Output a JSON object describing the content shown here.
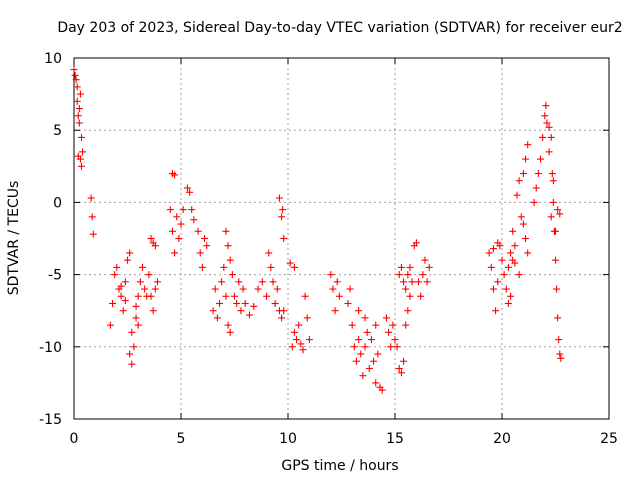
{
  "chart_data": {
    "type": "scatter",
    "title": "Day 203 of 2023, Sidereal Day-to-day VTEC variation (SDTVAR) for receiver eur2",
    "xlabel": "GPS time / hours",
    "ylabel": "SDTVAR / TECUs",
    "xlim": [
      0,
      25
    ],
    "ylim": [
      -15,
      10
    ],
    "xticks": [
      0,
      5,
      10,
      15,
      20,
      25
    ],
    "yticks": [
      -15,
      -10,
      -5,
      0,
      5,
      10
    ],
    "grid": true,
    "marker": "plus",
    "marker_color": "#ff0000",
    "series": [
      {
        "name": "eur2",
        "points": [
          [
            0.0,
            9.2
          ],
          [
            0.05,
            8.8
          ],
          [
            0.1,
            8.5
          ],
          [
            0.15,
            7.0
          ],
          [
            0.2,
            6.0
          ],
          [
            0.25,
            5.5
          ],
          [
            0.3,
            7.5
          ],
          [
            0.35,
            4.5
          ],
          [
            0.4,
            3.5
          ],
          [
            0.3,
            3.0
          ],
          [
            0.2,
            3.2
          ],
          [
            0.35,
            2.5
          ],
          [
            0.15,
            8.0
          ],
          [
            0.25,
            6.5
          ],
          [
            0.8,
            0.3
          ],
          [
            0.85,
            -1.0
          ],
          [
            0.9,
            -2.2
          ],
          [
            1.7,
            -8.5
          ],
          [
            1.8,
            -7.0
          ],
          [
            1.9,
            -5.0
          ],
          [
            2.0,
            -4.5
          ],
          [
            2.1,
            -6.0
          ],
          [
            2.2,
            -6.5
          ],
          [
            2.3,
            -7.5
          ],
          [
            2.4,
            -5.5
          ],
          [
            2.5,
            -4.0
          ],
          [
            2.6,
            -3.5
          ],
          [
            2.7,
            -9.0
          ],
          [
            2.6,
            -10.5
          ],
          [
            2.7,
            -11.2
          ],
          [
            2.8,
            -10.0
          ],
          [
            2.9,
            -8.0
          ],
          [
            3.0,
            -6.5
          ],
          [
            3.1,
            -5.5
          ],
          [
            3.2,
            -4.5
          ],
          [
            3.3,
            -6.0
          ],
          [
            3.4,
            -6.5
          ],
          [
            3.5,
            -5.0
          ],
          [
            3.6,
            -6.5
          ],
          [
            3.7,
            -7.5
          ],
          [
            3.8,
            -6.0
          ],
          [
            3.9,
            -5.5
          ],
          [
            2.2,
            -5.8
          ],
          [
            2.4,
            -6.8
          ],
          [
            2.9,
            -7.2
          ],
          [
            3.0,
            -8.5
          ],
          [
            3.6,
            -2.5
          ],
          [
            3.7,
            -2.8
          ],
          [
            3.8,
            -3.0
          ],
          [
            4.5,
            -0.5
          ],
          [
            4.6,
            -2.0
          ],
          [
            4.7,
            -3.5
          ],
          [
            4.8,
            -1.0
          ],
          [
            4.9,
            -2.5
          ],
          [
            5.0,
            -1.5
          ],
          [
            5.1,
            -0.5
          ],
          [
            4.6,
            2.0
          ],
          [
            4.7,
            1.9
          ],
          [
            5.3,
            1.0
          ],
          [
            5.4,
            0.7
          ],
          [
            5.5,
            -0.5
          ],
          [
            5.6,
            -1.2
          ],
          [
            5.8,
            -2.0
          ],
          [
            5.9,
            -3.5
          ],
          [
            6.0,
            -4.5
          ],
          [
            6.1,
            -2.5
          ],
          [
            6.2,
            -3.0
          ],
          [
            6.5,
            -7.5
          ],
          [
            6.6,
            -6.0
          ],
          [
            6.7,
            -8.0
          ],
          [
            6.8,
            -7.0
          ],
          [
            6.9,
            -5.5
          ],
          [
            7.0,
            -4.5
          ],
          [
            7.1,
            -6.5
          ],
          [
            7.2,
            -8.5
          ],
          [
            7.3,
            -9.0
          ],
          [
            7.1,
            -2.0
          ],
          [
            7.2,
            -3.0
          ],
          [
            7.3,
            -4.0
          ],
          [
            7.4,
            -5.0
          ],
          [
            7.5,
            -6.5
          ],
          [
            7.6,
            -7.0
          ],
          [
            7.7,
            -5.5
          ],
          [
            7.8,
            -7.5
          ],
          [
            7.9,
            -6.0
          ],
          [
            8.0,
            -7.0
          ],
          [
            8.2,
            -7.8
          ],
          [
            8.4,
            -7.2
          ],
          [
            8.6,
            -6.0
          ],
          [
            8.8,
            -5.5
          ],
          [
            9.0,
            -6.5
          ],
          [
            9.1,
            -3.5
          ],
          [
            9.2,
            -4.5
          ],
          [
            9.3,
            -5.5
          ],
          [
            9.4,
            -7.0
          ],
          [
            9.5,
            -6.0
          ],
          [
            9.6,
            -7.5
          ],
          [
            9.7,
            -8.0
          ],
          [
            9.8,
            -7.5
          ],
          [
            9.6,
            0.3
          ],
          [
            9.7,
            -1.0
          ],
          [
            9.8,
            -2.5
          ],
          [
            9.75,
            -0.5
          ],
          [
            10.2,
            -10.0
          ],
          [
            10.3,
            -9.0
          ],
          [
            10.4,
            -9.5
          ],
          [
            10.5,
            -8.5
          ],
          [
            10.6,
            -9.8
          ],
          [
            10.7,
            -10.2
          ],
          [
            10.8,
            -6.5
          ],
          [
            10.9,
            -8.0
          ],
          [
            11.0,
            -9.5
          ],
          [
            10.1,
            -4.2
          ],
          [
            10.3,
            -4.5
          ],
          [
            12.0,
            -5.0
          ],
          [
            12.1,
            -6.0
          ],
          [
            12.2,
            -7.5
          ],
          [
            12.3,
            -5.5
          ],
          [
            12.4,
            -6.5
          ],
          [
            12.8,
            -7.0
          ],
          [
            12.9,
            -6.0
          ],
          [
            13.0,
            -8.5
          ],
          [
            13.1,
            -10.0
          ],
          [
            13.2,
            -11.0
          ],
          [
            13.3,
            -9.5
          ],
          [
            13.4,
            -10.5
          ],
          [
            13.5,
            -12.0
          ],
          [
            13.6,
            -10.0
          ],
          [
            13.7,
            -9.0
          ],
          [
            13.8,
            -11.5
          ],
          [
            13.9,
            -9.5
          ],
          [
            14.0,
            -11.0
          ],
          [
            14.1,
            -8.5
          ],
          [
            14.2,
            -10.5
          ],
          [
            14.3,
            -12.8
          ],
          [
            14.4,
            -13.0
          ],
          [
            14.1,
            -12.5
          ],
          [
            13.3,
            -7.5
          ],
          [
            13.6,
            -8.0
          ],
          [
            14.6,
            -8.0
          ],
          [
            14.7,
            -9.0
          ],
          [
            14.8,
            -10.0
          ],
          [
            14.9,
            -8.5
          ],
          [
            15.0,
            -9.5
          ],
          [
            15.1,
            -10.0
          ],
          [
            15.2,
            -11.5
          ],
          [
            15.3,
            -11.8
          ],
          [
            15.4,
            -11.0
          ],
          [
            15.5,
            -8.5
          ],
          [
            15.6,
            -7.5
          ],
          [
            15.7,
            -6.5
          ],
          [
            15.2,
            -5.0
          ],
          [
            15.3,
            -4.5
          ],
          [
            15.4,
            -5.5
          ],
          [
            15.5,
            -6.0
          ],
          [
            15.6,
            -5.0
          ],
          [
            15.7,
            -4.5
          ],
          [
            15.8,
            -5.5
          ],
          [
            15.9,
            -3.0
          ],
          [
            16.0,
            -2.8
          ],
          [
            16.1,
            -5.5
          ],
          [
            16.2,
            -6.5
          ],
          [
            16.3,
            -5.0
          ],
          [
            16.4,
            -4.0
          ],
          [
            16.5,
            -5.5
          ],
          [
            16.6,
            -4.5
          ],
          [
            19.4,
            -3.5
          ],
          [
            19.5,
            -4.5
          ],
          [
            19.6,
            -6.0
          ],
          [
            19.7,
            -7.5
          ],
          [
            19.8,
            -5.5
          ],
          [
            19.9,
            -3.0
          ],
          [
            20.0,
            -4.0
          ],
          [
            20.1,
            -5.0
          ],
          [
            20.2,
            -6.0
          ],
          [
            20.3,
            -7.0
          ],
          [
            19.8,
            -2.8
          ],
          [
            19.6,
            -3.2
          ],
          [
            20.3,
            -4.5
          ],
          [
            20.4,
            -3.5
          ],
          [
            20.5,
            -2.0
          ],
          [
            20.6,
            -3.0
          ],
          [
            20.7,
            0.5
          ],
          [
            20.8,
            1.5
          ],
          [
            20.9,
            -1.0
          ],
          [
            21.0,
            2.0
          ],
          [
            21.1,
            3.0
          ],
          [
            21.2,
            4.0
          ],
          [
            21.0,
            -1.5
          ],
          [
            20.5,
            -4.0
          ],
          [
            20.8,
            -5.0
          ],
          [
            20.4,
            -6.5
          ],
          [
            20.6,
            -4.2
          ],
          [
            21.1,
            -2.5
          ],
          [
            21.2,
            -3.5
          ],
          [
            21.5,
            0.0
          ],
          [
            21.6,
            1.0
          ],
          [
            21.7,
            2.0
          ],
          [
            21.8,
            3.0
          ],
          [
            21.9,
            4.5
          ],
          [
            22.0,
            6.0
          ],
          [
            22.05,
            6.7
          ],
          [
            22.1,
            5.5
          ],
          [
            22.2,
            5.2
          ],
          [
            22.3,
            4.5
          ],
          [
            22.35,
            2.0
          ],
          [
            22.4,
            0.0
          ],
          [
            22.45,
            -2.0
          ],
          [
            22.5,
            -4.0
          ],
          [
            22.55,
            -6.0
          ],
          [
            22.6,
            -8.0
          ],
          [
            22.65,
            -9.5
          ],
          [
            22.7,
            -10.5
          ],
          [
            22.75,
            -10.8
          ],
          [
            22.3,
            -1.0
          ],
          [
            22.5,
            -2.0
          ],
          [
            22.6,
            -0.5
          ],
          [
            22.2,
            3.5
          ],
          [
            22.4,
            1.5
          ],
          [
            22.7,
            -0.8
          ]
        ]
      }
    ]
  }
}
